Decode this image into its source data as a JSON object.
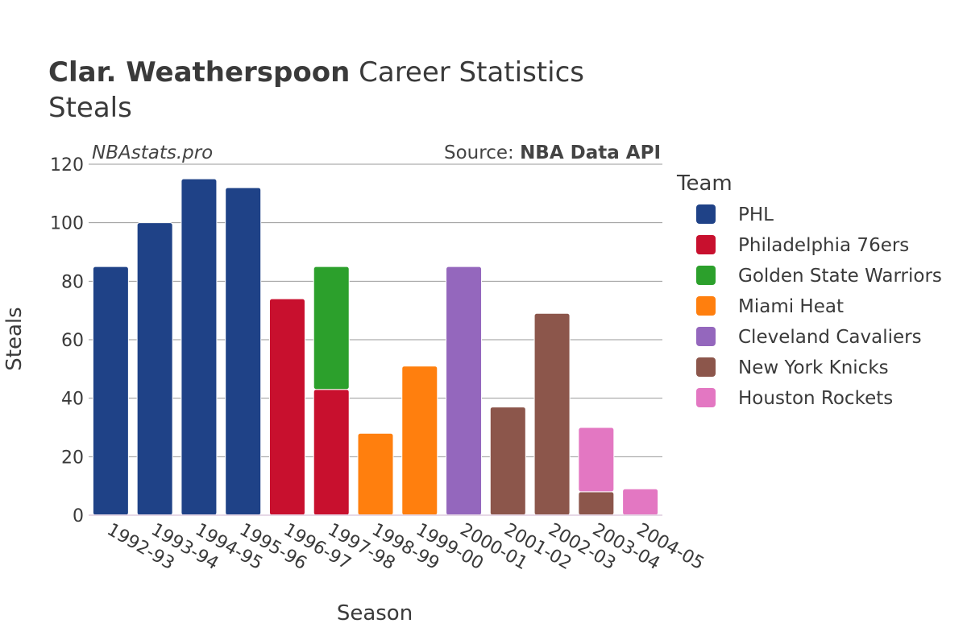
{
  "header": {
    "player": "Clar. Weatherspoon",
    "title_suffix": "Career Statistics",
    "stat": "Steals",
    "watermark": "NBAstats.pro",
    "source_label": "Source:",
    "source_name": "NBA Data API"
  },
  "chart_data": {
    "type": "bar",
    "stacked": true,
    "xlabel": "Season",
    "ylabel": "Steals",
    "ylim": [
      0,
      120
    ],
    "yticks": [
      0,
      20,
      40,
      60,
      80,
      100,
      120
    ],
    "grid": true,
    "legend_title": "Team",
    "legend_position": "right",
    "categories": [
      "1992-93",
      "1993-94",
      "1994-95",
      "1995-96",
      "1996-97",
      "1997-98",
      "1998-99",
      "1999-00",
      "2000-01",
      "2001-02",
      "2002-03",
      "2003-04",
      "2004-05"
    ],
    "series": [
      {
        "name": "PHL",
        "color": "#1f4287",
        "values": [
          85,
          100,
          115,
          112,
          0,
          0,
          0,
          0,
          0,
          0,
          0,
          0,
          0
        ]
      },
      {
        "name": "Philadelphia 76ers",
        "color": "#c8102e",
        "values": [
          0,
          0,
          0,
          0,
          74,
          43,
          0,
          0,
          0,
          0,
          0,
          0,
          0
        ]
      },
      {
        "name": "Golden State Warriors",
        "color": "#2ca02c",
        "values": [
          0,
          0,
          0,
          0,
          0,
          42,
          0,
          0,
          0,
          0,
          0,
          0,
          0
        ]
      },
      {
        "name": "Miami Heat",
        "color": "#ff7f0e",
        "values": [
          0,
          0,
          0,
          0,
          0,
          0,
          28,
          51,
          0,
          0,
          0,
          0,
          0
        ]
      },
      {
        "name": "Cleveland Cavaliers",
        "color": "#9467bd",
        "values": [
          0,
          0,
          0,
          0,
          0,
          0,
          0,
          0,
          85,
          0,
          0,
          0,
          0
        ]
      },
      {
        "name": "New York Knicks",
        "color": "#8c564b",
        "values": [
          0,
          0,
          0,
          0,
          0,
          0,
          0,
          0,
          0,
          37,
          69,
          8,
          0
        ]
      },
      {
        "name": "Houston Rockets",
        "color": "#e377c2",
        "values": [
          0,
          0,
          0,
          0,
          0,
          0,
          0,
          0,
          0,
          0,
          0,
          22,
          9
        ]
      }
    ]
  }
}
